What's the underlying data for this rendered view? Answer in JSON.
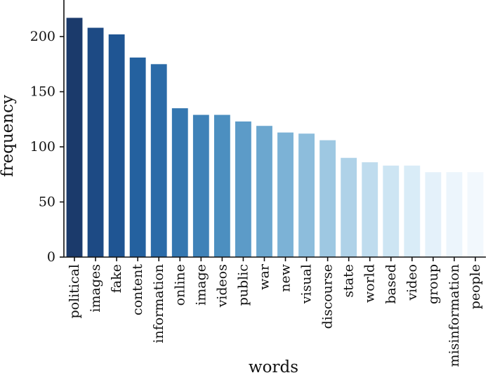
{
  "chart_data": {
    "type": "bar",
    "xlabel": "words",
    "ylabel": "frequency",
    "ylim": [
      0,
      230
    ],
    "yticks": [
      0,
      50,
      100,
      150,
      200
    ],
    "grid": false,
    "legend": "none",
    "categories": [
      "political",
      "images",
      "fake",
      "content",
      "information",
      "online",
      "image",
      "videos",
      "public",
      "war",
      "new",
      "visual",
      "discourse",
      "state",
      "world",
      "based",
      "video",
      "group",
      "misinformation",
      "people"
    ],
    "values": [
      217,
      208,
      202,
      181,
      175,
      135,
      129,
      129,
      123,
      119,
      113,
      112,
      106,
      90,
      86,
      83,
      83,
      77,
      77,
      77
    ],
    "colors": [
      "#1b3a6b",
      "#1d4a84",
      "#1f5593",
      "#24619f",
      "#2b6ba8",
      "#3577b0",
      "#3f82b8",
      "#4c8fc0",
      "#5c9bc8",
      "#6ca7cf",
      "#7cb2d6",
      "#8dbddc",
      "#9ec8e2",
      "#afd2e8",
      "#bfdcee",
      "#cde5f3",
      "#d9ecf7",
      "#e4f1fa",
      "#ecf5fc",
      "#f2f8fd"
    ]
  }
}
